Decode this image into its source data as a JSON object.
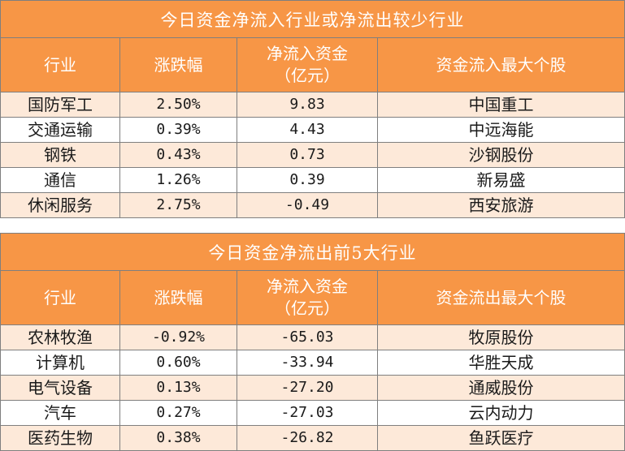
{
  "table1": {
    "title": "今日资金净流入行业或净流出较少行业",
    "headers": [
      "行业",
      "涨跌幅",
      "净流入资金\n（亿元）",
      "资金流入最大个股"
    ],
    "rows": [
      [
        "国防军工",
        "2.50%",
        "9.83",
        "中国重工"
      ],
      [
        "交通运输",
        "0.39%",
        "4.43",
        "中远海能"
      ],
      [
        "钢铁",
        "0.43%",
        "0.73",
        "沙钢股份"
      ],
      [
        "通信",
        "1.26%",
        "0.39",
        "新易盛"
      ],
      [
        "休闲服务",
        "2.75%",
        "-0.49",
        "西安旅游"
      ]
    ]
  },
  "table2": {
    "title": "今日资金净流出前5大行业",
    "headers": [
      "行业",
      "涨跌幅",
      "净流入资金\n（亿元）",
      "资金流出最大个股"
    ],
    "rows": [
      [
        "农林牧渔",
        "-0.92%",
        "-65.03",
        "牧原股份"
      ],
      [
        "计算机",
        "0.60%",
        "-33.94",
        "华胜天成"
      ],
      [
        "电气设备",
        "0.13%",
        "-27.20",
        "通威股份"
      ],
      [
        "汽车",
        "0.27%",
        "-27.03",
        "云内动力"
      ],
      [
        "医药生物",
        "0.38%",
        "-26.82",
        "鱼跃医疗"
      ]
    ]
  },
  "colors": {
    "header_bg": "#f79646",
    "stripe_bg": "#fde9d9",
    "border": "#7f7f7f"
  }
}
